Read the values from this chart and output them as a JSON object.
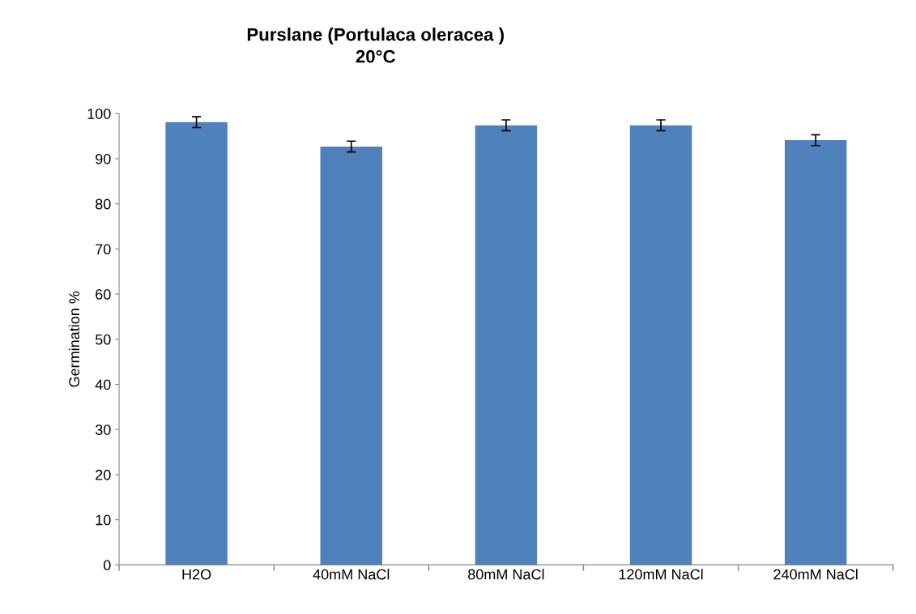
{
  "chart_data": {
    "type": "bar",
    "title": "Purslane (Portulaca oleracea )\n20°C",
    "ylabel": "Germination %",
    "categories": [
      "H2O",
      "40mM NaCl",
      "80mM NaCl",
      "120mM NaCl",
      "240mM NaCl"
    ],
    "values": [
      98.1,
      92.7,
      97.4,
      97.4,
      94.1
    ],
    "errors": [
      1.2,
      1.2,
      1.2,
      1.2,
      1.2
    ],
    "color": "#4f81bd",
    "ylim": [
      0,
      100
    ],
    "yticks": [
      0,
      10,
      20,
      30,
      40,
      50,
      60,
      70,
      80,
      90,
      100
    ],
    "grid": false,
    "legend": false
  }
}
